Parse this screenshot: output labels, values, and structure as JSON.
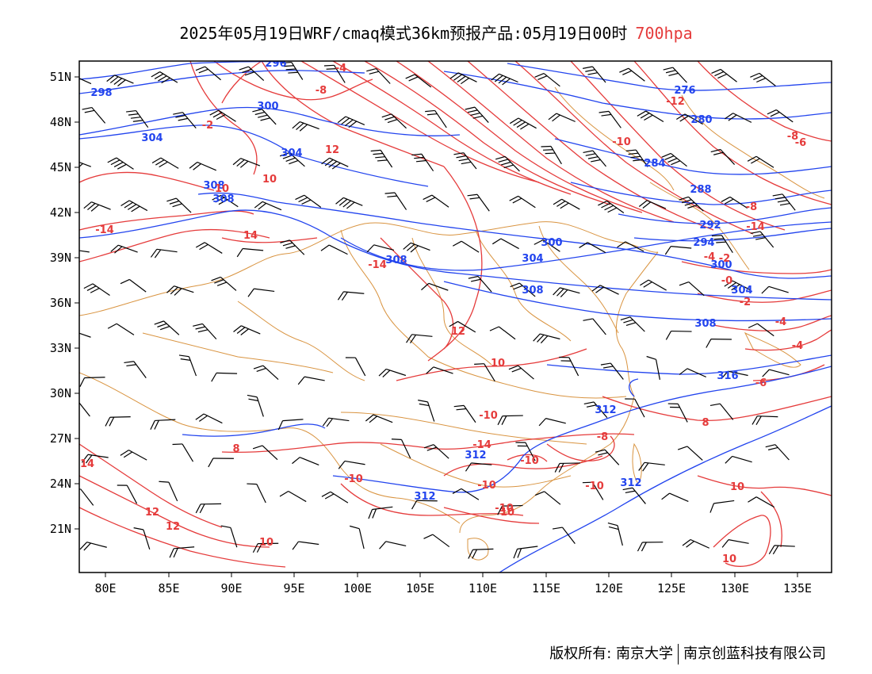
{
  "title": {
    "text": "2025年05月19日WRF/cmaq模式36km预报产品:05月19日00时",
    "level": "700hpa",
    "level_color": "#e53b3b"
  },
  "axes": {
    "lon_labels": [
      "80E",
      "85E",
      "90E",
      "95E",
      "100E",
      "105E",
      "110E",
      "115E",
      "120E",
      "125E",
      "130E",
      "135E"
    ],
    "lat_labels": [
      "51N",
      "48N",
      "45N",
      "42N",
      "39N",
      "36N",
      "33N",
      "30N",
      "27N",
      "24N",
      "21N"
    ]
  },
  "colors": {
    "height_contour": "#2244ee",
    "temperature_contour": "#e53b3b",
    "boundaries": "#d99441",
    "wind_barb": "#000000"
  },
  "height_labels": [
    "296",
    "298",
    "300",
    "304",
    "304",
    "308",
    "308",
    "308",
    "308",
    "312",
    "312",
    "312",
    "316",
    "276",
    "280",
    "284",
    "288",
    "292",
    "294",
    "300",
    "300",
    "304",
    "304",
    "308",
    "312"
  ],
  "temperature_labels": [
    "-8",
    "-2",
    "-4",
    "-12",
    "-10",
    "-10",
    "12",
    "10",
    "-14",
    "-14",
    "-8",
    "-14",
    "14",
    "-14",
    "12",
    "10",
    "-10",
    "-8",
    "-6",
    "-2",
    "-4",
    "-0",
    "-2",
    "-4",
    "-4",
    "-6",
    "-8",
    "-10",
    "-10",
    "-10",
    "-10",
    "8",
    "8",
    "14",
    "12",
    "12",
    "10",
    "10",
    "10",
    "10",
    "10"
  ],
  "credit": {
    "left": "版权所有: 南京大学",
    "right": "南京创蓝科技有限公司"
  }
}
